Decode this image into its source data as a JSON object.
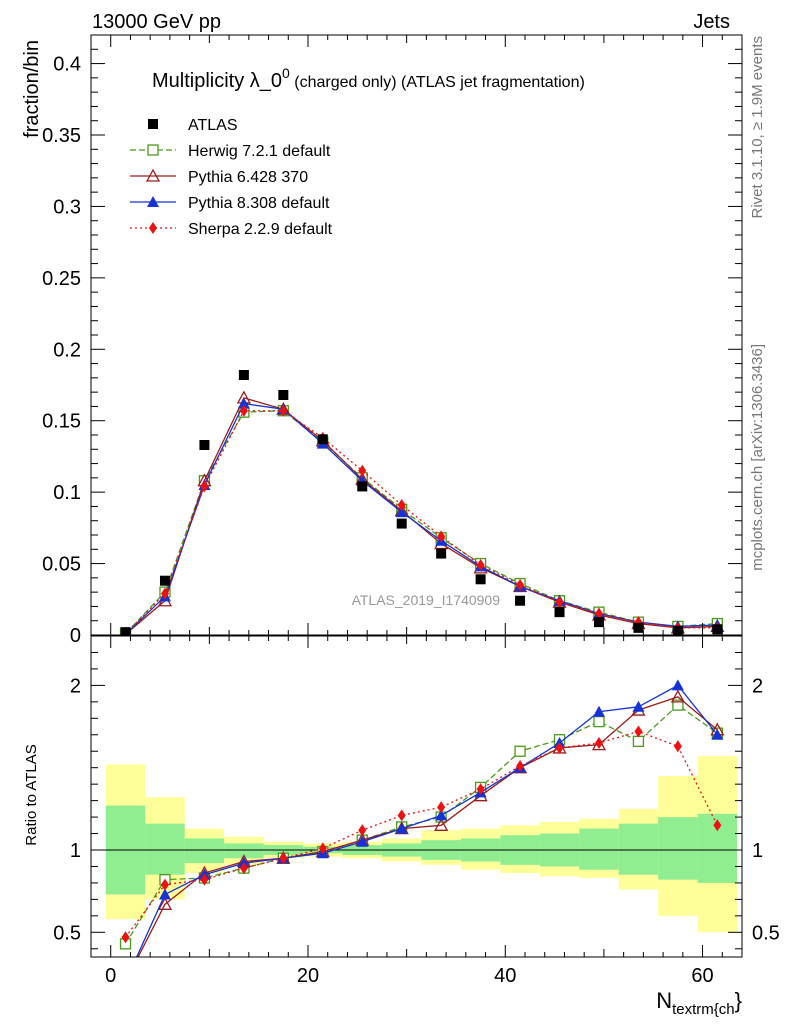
{
  "header": {
    "left": "13000 GeV pp",
    "right": "Jets"
  },
  "chart_data": {
    "type": "line",
    "title_main": "Multiplicity λ_0",
    "title_sup": "0",
    "title_rest": " (charged only) (ATLAS jet fragmentation)",
    "ylabel": "fraction/bin",
    "ratio_ylabel": "Ratio to ATLAS",
    "xlabel_main": "N",
    "xlabel_sub": "textrm{ch",
    "xlabel_close": "}",
    "analysis_label": "ATLAS_2019_I1740909",
    "side_label_top": "Rivet 3.1.10, ≥ 1.9M events",
    "side_label_bottom": "mcplots.cern.ch [arXiv:1306.3436]",
    "xlim": [
      -2,
      64
    ],
    "ylim": [
      0,
      0.42
    ],
    "ratio_ylim": [
      0.35,
      2.3
    ],
    "x_ticks": [
      0,
      20,
      40,
      60
    ],
    "x_tick_labels": [
      "0",
      "20",
      "40",
      "60"
    ],
    "y_ticks": [
      0,
      0.05,
      0.1,
      0.15,
      0.2,
      0.25,
      0.3,
      0.35,
      0.4
    ],
    "y_tick_labels": [
      "0",
      "0.05",
      "0.1",
      "0.15",
      "0.2",
      "0.25",
      "0.3",
      "0.35",
      "0.4"
    ],
    "ratio_ticks": [
      0.5,
      1,
      2
    ],
    "ratio_tick_labels": [
      "0.5",
      "1",
      "2"
    ],
    "x": [
      1.5,
      5.5,
      9.5,
      13.5,
      17.5,
      21.5,
      25.5,
      29.5,
      33.5,
      37.5,
      41.5,
      45.5,
      49.5,
      53.5,
      57.5,
      61.5
    ],
    "band_edges": [
      -0.5,
      3.5,
      7.5,
      11.5,
      15.5,
      19.5,
      23.5,
      27.5,
      31.5,
      35.5,
      39.5,
      43.5,
      47.5,
      51.5,
      55.5,
      59.5,
      63.5
    ],
    "band_green": [
      [
        0.73,
        1.27
      ],
      [
        0.85,
        1.16
      ],
      [
        0.92,
        1.07
      ],
      [
        0.95,
        1.04
      ],
      [
        0.97,
        1.03
      ],
      [
        0.98,
        1.02
      ],
      [
        0.97,
        1.03
      ],
      [
        0.96,
        1.04
      ],
      [
        0.94,
        1.06
      ],
      [
        0.93,
        1.07
      ],
      [
        0.91,
        1.09
      ],
      [
        0.9,
        1.1
      ],
      [
        0.88,
        1.13
      ],
      [
        0.85,
        1.16
      ],
      [
        0.82,
        1.2
      ],
      [
        0.8,
        1.22
      ]
    ],
    "band_yellow": [
      [
        0.58,
        1.52
      ],
      [
        0.7,
        1.32
      ],
      [
        0.86,
        1.13
      ],
      [
        0.91,
        1.08
      ],
      [
        0.95,
        1.05
      ],
      [
        0.96,
        1.04
      ],
      [
        0.95,
        1.05
      ],
      [
        0.93,
        1.07
      ],
      [
        0.91,
        1.12
      ],
      [
        0.88,
        1.13
      ],
      [
        0.86,
        1.15
      ],
      [
        0.84,
        1.17
      ],
      [
        0.83,
        1.19
      ],
      [
        0.76,
        1.25
      ],
      [
        0.6,
        1.45
      ],
      [
        0.5,
        1.57
      ]
    ],
    "series": [
      {
        "name": "ATLAS",
        "color": "#000000",
        "marker": "square-filled",
        "line": "none",
        "values": [
          0.002,
          0.038,
          0.133,
          0.182,
          0.168,
          0.137,
          0.104,
          0.078,
          0.057,
          0.039,
          0.024,
          0.016,
          0.009,
          0.005,
          0.003,
          0.004
        ],
        "ratio": []
      },
      {
        "name": "Herwig 7.2.1 default",
        "color": "#4a9a1a",
        "marker": "square-open",
        "line": "dashed",
        "values": [
          0.001,
          0.03,
          0.108,
          0.156,
          0.157,
          0.135,
          0.11,
          0.088,
          0.068,
          0.05,
          0.036,
          0.024,
          0.016,
          0.009,
          0.006,
          0.008
        ],
        "ratio": [
          0.43,
          0.82,
          0.83,
          0.89,
          0.95,
          0.99,
          1.06,
          1.14,
          1.2,
          1.38,
          1.6,
          1.67,
          1.78,
          1.66,
          1.88,
          1.71
        ]
      },
      {
        "name": "Pythia 6.428 370",
        "color": "#9b1c1c",
        "marker": "triangle-open",
        "line": "solid",
        "values": [
          0.0005,
          0.024,
          0.108,
          0.166,
          0.158,
          0.136,
          0.109,
          0.087,
          0.064,
          0.047,
          0.034,
          0.023,
          0.014,
          0.008,
          0.005,
          0.006
        ],
        "ratio": [
          0.2,
          0.67,
          0.86,
          0.93,
          0.95,
          0.99,
          1.06,
          1.13,
          1.15,
          1.33,
          1.5,
          1.62,
          1.64,
          1.85,
          1.93,
          1.73
        ]
      },
      {
        "name": "Pythia 8.308 default",
        "color": "#1433d6",
        "marker": "triangle-filled",
        "line": "solid",
        "values": [
          0.0005,
          0.027,
          0.105,
          0.162,
          0.158,
          0.134,
          0.108,
          0.086,
          0.066,
          0.048,
          0.034,
          0.024,
          0.015,
          0.009,
          0.006,
          0.007
        ],
        "ratio": [
          0.2,
          0.73,
          0.85,
          0.92,
          0.95,
          0.98,
          1.05,
          1.13,
          1.21,
          1.35,
          1.5,
          1.65,
          1.84,
          1.87,
          2.0,
          1.7
        ]
      },
      {
        "name": "Sherpa 2.2.9 default",
        "color": "#ee1111",
        "marker": "diamond-filled",
        "line": "dotted",
        "values": [
          0.0008,
          0.029,
          0.104,
          0.157,
          0.157,
          0.138,
          0.115,
          0.091,
          0.069,
          0.049,
          0.035,
          0.023,
          0.015,
          0.009,
          0.005,
          0.005
        ],
        "ratio": [
          0.47,
          0.79,
          0.82,
          0.89,
          0.95,
          1.01,
          1.12,
          1.21,
          1.26,
          1.37,
          1.51,
          1.62,
          1.65,
          1.72,
          1.63,
          1.15
        ]
      }
    ]
  }
}
